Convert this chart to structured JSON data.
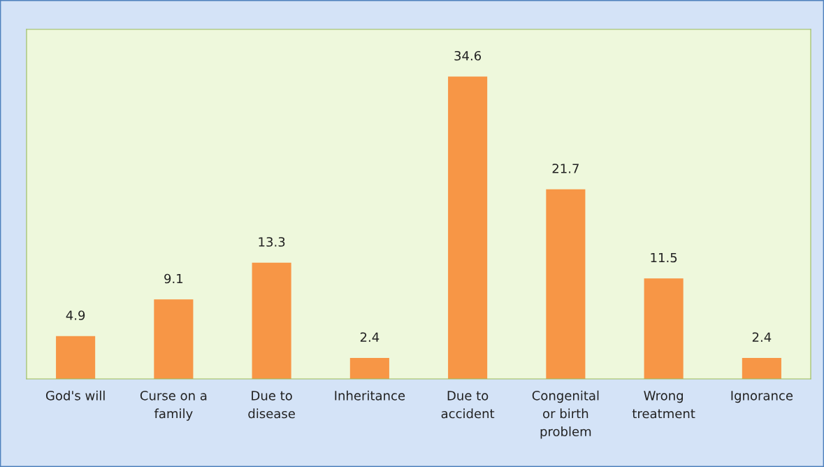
{
  "chart_data": {
    "type": "bar",
    "categories": [
      "God's will",
      "Curse on a family",
      "Due to disease",
      "Inheritance",
      "Due to accident",
      "Congenital or birth problem",
      "Wrong treatment",
      "Ignorance"
    ],
    "values": [
      4.9,
      9.1,
      13.3,
      2.4,
      34.6,
      21.7,
      11.5,
      2.4
    ],
    "color": "#f79646",
    "ylim": [
      0,
      40
    ],
    "data_labels": true,
    "tick_labels": "x",
    "grid": false,
    "legend": false
  }
}
